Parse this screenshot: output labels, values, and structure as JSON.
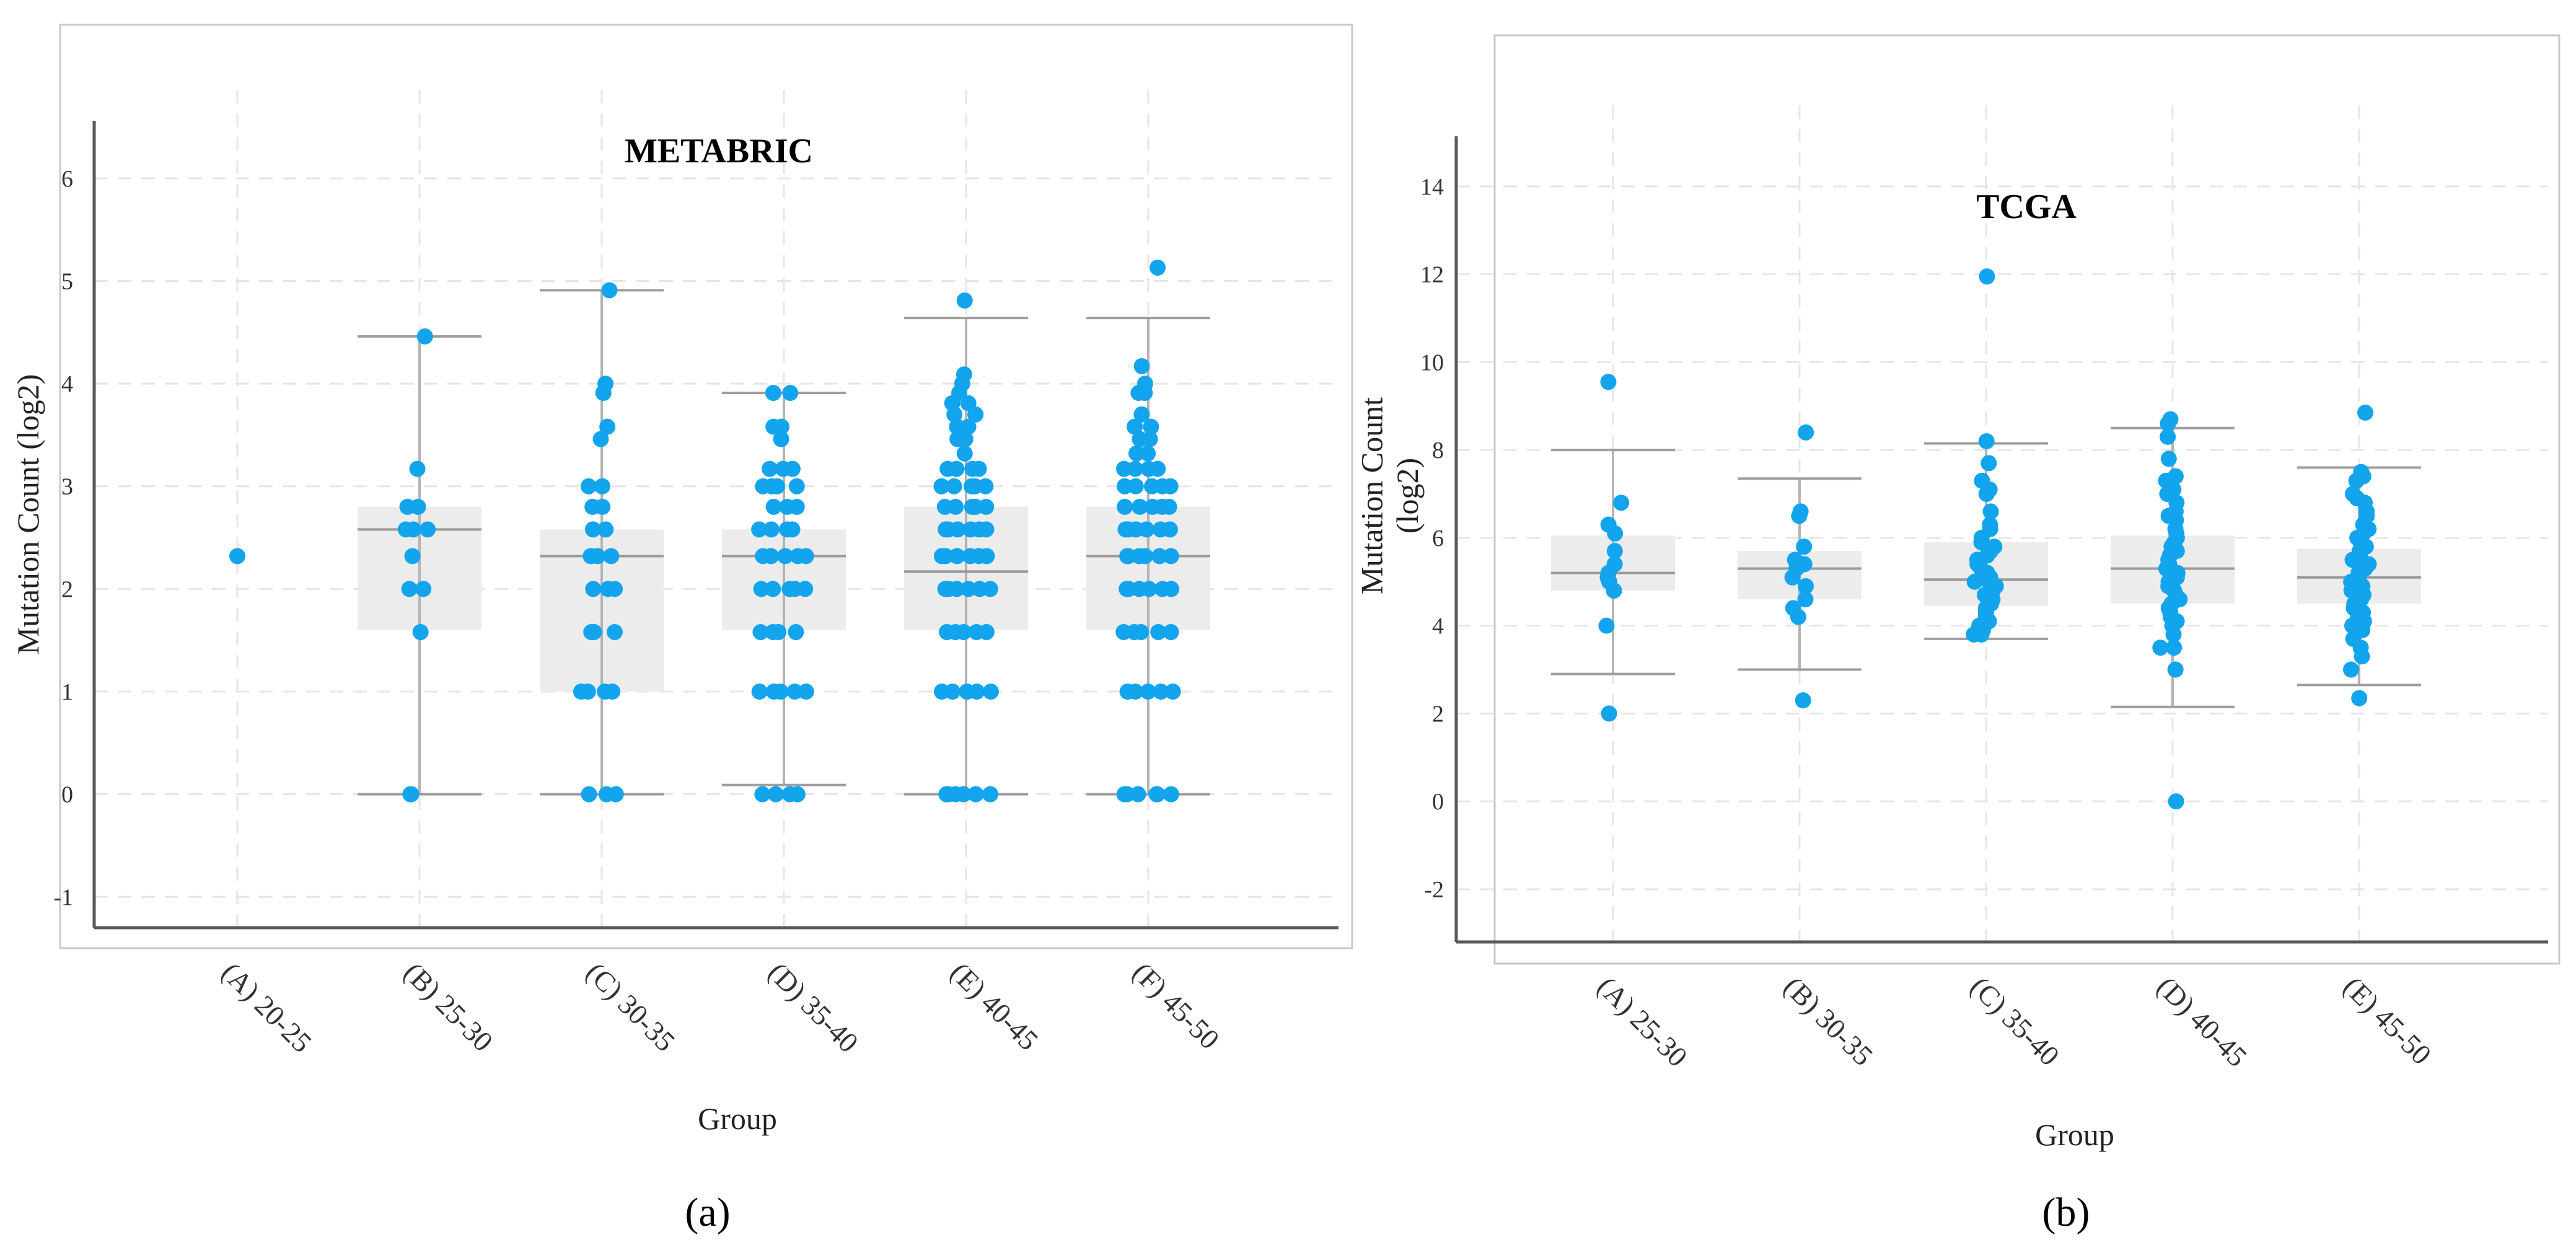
{
  "chart_data": [
    {
      "type": "box-strip",
      "title": "METABRIC",
      "xlabel": "Group",
      "ylabel": "Mutation Count (log2)",
      "panel_label": "(a)",
      "ylim": [
        -1.3,
        6.5
      ],
      "yticks": [
        -1,
        0,
        1,
        2,
        3,
        4,
        5,
        6
      ],
      "grid": true,
      "point_color": "#13a4ee",
      "categories": [
        "(A) 20-25",
        "(B) 25-30",
        "(C) 30-35",
        "(D) 35-40",
        "(E) 40-45",
        "(F) 45-50"
      ],
      "boxes": [
        null,
        {
          "q1": 1.6,
          "median": 2.58,
          "q3": 2.8,
          "whisker_low": 0,
          "whisker_high": 4.46
        },
        {
          "q1": 1.0,
          "median": 2.32,
          "q3": 2.58,
          "whisker_low": 0,
          "whisker_high": 4.91
        },
        {
          "q1": 1.6,
          "median": 2.32,
          "q3": 2.58,
          "whisker_low": 0.09,
          "whisker_high": 3.91
        },
        {
          "q1": 1.6,
          "median": 2.17,
          "q3": 2.8,
          "whisker_low": 0,
          "whisker_high": 4.64
        },
        {
          "q1": 1.6,
          "median": 2.32,
          "q3": 2.8,
          "whisker_low": 0,
          "whisker_high": 4.64
        }
      ],
      "points": [
        [
          2.32
        ],
        [
          4.46,
          3.17,
          2.8,
          2.8,
          2.58,
          2.58,
          2.58,
          2.32,
          2.0,
          2.0,
          1.58,
          0,
          0
        ],
        [
          4.91,
          4.0,
          3.91,
          3.58,
          3.46,
          3.0,
          3.0,
          2.8,
          2.8,
          2.58,
          2.58,
          2.32,
          2.32,
          2.32,
          2.0,
          2.0,
          2.0,
          1.58,
          1.58,
          1.58,
          1.0,
          1.0,
          1.0,
          1.0,
          0,
          0,
          0
        ],
        [
          3.91,
          3.91,
          3.58,
          3.58,
          3.46,
          3.17,
          3.17,
          3.17,
          3.0,
          3.0,
          3.0,
          3.0,
          2.8,
          2.8,
          2.8,
          2.58,
          2.58,
          2.58,
          2.58,
          2.32,
          2.32,
          2.32,
          2.32,
          2.32,
          2.0,
          2.0,
          2.0,
          2.0,
          2.0,
          1.58,
          1.58,
          1.58,
          1.58,
          1.0,
          1.0,
          1.0,
          1.0,
          1.0,
          0,
          0,
          0,
          0
        ],
        [
          4.81,
          4.09,
          4.0,
          3.91,
          3.81,
          3.81,
          3.7,
          3.7,
          3.7,
          3.58,
          3.58,
          3.46,
          3.46,
          3.32,
          3.17,
          3.17,
          3.17,
          3.17,
          3.0,
          3.0,
          3.0,
          3.0,
          3.0,
          2.8,
          2.8,
          2.8,
          2.8,
          2.8,
          2.58,
          2.58,
          2.58,
          2.58,
          2.58,
          2.58,
          2.32,
          2.32,
          2.32,
          2.32,
          2.32,
          2.32,
          2.0,
          2.0,
          2.0,
          2.0,
          2.0,
          2.0,
          1.58,
          1.58,
          1.58,
          1.58,
          1.58,
          1.0,
          1.0,
          1.0,
          1.0,
          1.0,
          0,
          0,
          0,
          0,
          0,
          0
        ],
        [
          5.13,
          4.17,
          4.0,
          3.91,
          3.91,
          3.7,
          3.58,
          3.58,
          3.46,
          3.46,
          3.32,
          3.32,
          3.17,
          3.17,
          3.17,
          3.17,
          3.0,
          3.0,
          3.0,
          3.0,
          3.0,
          2.8,
          2.8,
          2.8,
          2.8,
          2.8,
          2.58,
          2.58,
          2.58,
          2.58,
          2.58,
          2.58,
          2.32,
          2.32,
          2.32,
          2.32,
          2.32,
          2.32,
          2.0,
          2.0,
          2.0,
          2.0,
          2.0,
          2.0,
          1.58,
          1.58,
          1.58,
          1.58,
          1.58,
          1.0,
          1.0,
          1.0,
          1.0,
          1.0,
          0,
          0,
          0,
          0,
          0,
          0
        ]
      ]
    },
    {
      "type": "box-strip",
      "title": "TCGA",
      "xlabel": "Group",
      "ylabel": "Mutation Count (log2)",
      "panel_label": "(b)",
      "ylim": [
        -3.2,
        15.0
      ],
      "yticks": [
        -2,
        0,
        2,
        4,
        6,
        8,
        10,
        12,
        14
      ],
      "grid": true,
      "point_color": "#13a4ee",
      "categories": [
        "(A) 25-30",
        "(B) 30-35",
        "(C) 35-40",
        "(D) 40-45",
        "(E) 45-50"
      ],
      "boxes": [
        {
          "q1": 4.8,
          "median": 5.2,
          "q3": 6.05,
          "whisker_low": 2.9,
          "whisker_high": 8.0
        },
        {
          "q1": 4.6,
          "median": 5.3,
          "q3": 5.7,
          "whisker_low": 3.0,
          "whisker_high": 7.35
        },
        {
          "q1": 4.45,
          "median": 5.05,
          "q3": 5.9,
          "whisker_low": 3.7,
          "whisker_high": 8.15
        },
        {
          "q1": 4.5,
          "median": 5.3,
          "q3": 6.05,
          "whisker_low": 2.15,
          "whisker_high": 8.5
        },
        {
          "q1": 4.5,
          "median": 5.1,
          "q3": 5.75,
          "whisker_low": 2.65,
          "whisker_high": 7.6
        }
      ],
      "points": [
        [
          9.55,
          6.8,
          6.3,
          6.1,
          5.7,
          5.4,
          5.2,
          5.1,
          5.0,
          4.8,
          4.0,
          2.0
        ],
        [
          8.4,
          6.6,
          6.5,
          5.8,
          5.5,
          5.4,
          5.3,
          5.1,
          4.9,
          4.6,
          4.4,
          4.2,
          2.3
        ],
        [
          11.95,
          8.2,
          7.7,
          7.3,
          7.1,
          7.0,
          6.6,
          6.3,
          6.2,
          6.0,
          5.9,
          5.8,
          5.7,
          5.6,
          5.5,
          5.4,
          5.3,
          5.2,
          5.1,
          5.0,
          5.0,
          4.9,
          4.8,
          4.7,
          4.6,
          4.5,
          4.4,
          4.3,
          4.2,
          4.1,
          4.0,
          3.9,
          3.8,
          3.8
        ],
        [
          8.7,
          8.6,
          8.3,
          7.8,
          7.4,
          7.3,
          7.1,
          7.0,
          6.8,
          6.6,
          6.5,
          6.4,
          6.2,
          6.1,
          6.0,
          5.9,
          5.8,
          5.7,
          5.6,
          5.5,
          5.4,
          5.3,
          5.2,
          5.1,
          5.0,
          4.9,
          4.8,
          4.7,
          4.6,
          4.5,
          4.4,
          4.3,
          4.2,
          4.1,
          4.0,
          3.8,
          3.5,
          3.5,
          3.0,
          0.0
        ],
        [
          8.85,
          7.5,
          7.4,
          7.3,
          7.0,
          6.9,
          6.8,
          6.6,
          6.5,
          6.3,
          6.2,
          6.1,
          6.0,
          5.9,
          5.8,
          5.7,
          5.6,
          5.5,
          5.4,
          5.3,
          5.2,
          5.1,
          5.0,
          4.9,
          4.8,
          4.7,
          4.6,
          4.5,
          4.4,
          4.3,
          4.2,
          4.1,
          4.0,
          3.9,
          3.7,
          3.5,
          3.3,
          3.0,
          2.35
        ]
      ]
    }
  ]
}
